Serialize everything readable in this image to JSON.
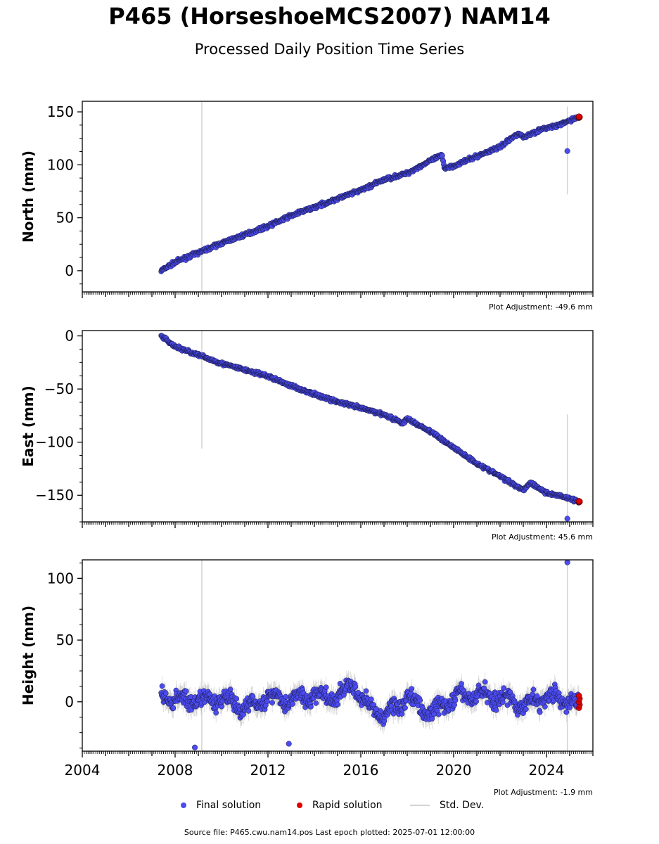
{
  "header": {
    "title": "P465 (HorseshoeMCS2007) NAM14",
    "subtitle": "Processed Daily Position Time Series"
  },
  "footer": {
    "source_text": "Source file: P465.cwu.nam14.pos  Last epoch plotted: 2025-07-01 12:00:00"
  },
  "legend": {
    "items": [
      {
        "label": "Final solution",
        "color": "#4b4bf0"
      },
      {
        "label": "Rapid solution",
        "color": "#e00000"
      },
      {
        "label": "Std. Dev.",
        "color": "#d3d3d3"
      }
    ]
  },
  "colors": {
    "final": "#4b4bf0",
    "rapid": "#e00000",
    "stddev": "#d3d3d3",
    "edge": "#000000"
  },
  "chart_data": [
    {
      "type": "scatter",
      "ylabel": "North (mm)",
      "adjustment": "Plot Adjustment: -49.6 mm",
      "xlim": [
        2004,
        2026
      ],
      "ylim": [
        -20,
        160
      ],
      "yticks": [
        "0",
        "50",
        "100",
        "150"
      ],
      "ytick_values": [
        0,
        50,
        100,
        150
      ],
      "xticks": [
        "2004",
        "2008",
        "2012",
        "2016",
        "2020",
        "2024"
      ],
      "xtick_values": [
        2004,
        2008,
        2012,
        2016,
        2020,
        2024
      ],
      "show_xticklabels": false,
      "series": [
        {
          "x": [
            2007.4,
            2008.0,
            2009.0,
            2010.0,
            2011.0,
            2012.0,
            2013.0,
            2014.0,
            2015.0,
            2016.0,
            2017.0,
            2018.0,
            2019.0,
            2019.5,
            2019.6,
            2020.0,
            2021.0,
            2022.0,
            2022.8,
            2023.0,
            2023.5,
            2024.0,
            2024.5,
            2025.0,
            2025.4
          ],
          "y": [
            0,
            8,
            17,
            26,
            34,
            42,
            52,
            60,
            68,
            76,
            86,
            92,
            104,
            109,
            97,
            99,
            108,
            117,
            130,
            126,
            131,
            135,
            137,
            142,
            145
          ]
        }
      ],
      "outliers": [
        {
          "x": 2024.9,
          "y": 113
        }
      ],
      "rapid": [
        {
          "x": 2025.4,
          "y": 145
        }
      ],
      "stddev_bars": [
        {
          "x": 2009.15,
          "y0": -20,
          "y1": 160
        },
        {
          "x": 2024.9,
          "y0": 72,
          "y1": 155
        }
      ]
    },
    {
      "type": "scatter",
      "ylabel": "East (mm)",
      "adjustment": "Plot Adjustment: 45.6 mm",
      "xlim": [
        2004,
        2026
      ],
      "ylim": [
        -175,
        5
      ],
      "yticks": [
        "0",
        "−50",
        "−100",
        "−150"
      ],
      "ytick_values": [
        0,
        -50,
        -100,
        -150
      ],
      "xticks": [
        "2004",
        "2008",
        "2012",
        "2016",
        "2020",
        "2024"
      ],
      "xtick_values": [
        2004,
        2008,
        2012,
        2016,
        2020,
        2024
      ],
      "show_xticklabels": false,
      "series": [
        {
          "x": [
            2007.4,
            2008.0,
            2009.0,
            2010.0,
            2011.0,
            2012.0,
            2013.0,
            2014.0,
            2015.0,
            2016.0,
            2017.0,
            2017.8,
            2018.0,
            2019.0,
            2020.0,
            2021.0,
            2022.0,
            2023.0,
            2023.3,
            2023.6,
            2024.0,
            2024.5,
            2025.0,
            2025.4
          ],
          "y": [
            0,
            -10,
            -18,
            -26,
            -32,
            -38,
            -47,
            -55,
            -62,
            -68,
            -74,
            -82,
            -78,
            -90,
            -105,
            -120,
            -132,
            -145,
            -138,
            -142,
            -148,
            -150,
            -153,
            -156
          ]
        }
      ],
      "outliers": [
        {
          "x": 2024.9,
          "y": -172
        }
      ],
      "rapid": [
        {
          "x": 2025.4,
          "y": -156
        }
      ],
      "stddev_bars": [
        {
          "x": 2009.15,
          "y0": -106,
          "y1": 5
        },
        {
          "x": 2024.9,
          "y0": -175,
          "y1": -74
        }
      ]
    },
    {
      "type": "scatter",
      "ylabel": "Height (mm)",
      "adjustment": "Plot Adjustment: -1.9 mm",
      "xlim": [
        2004,
        2026
      ],
      "ylim": [
        -40,
        115
      ],
      "yticks": [
        "0",
        "50",
        "100"
      ],
      "ytick_values": [
        0,
        50,
        100
      ],
      "xticks": [
        "2004",
        "2008",
        "2012",
        "2016",
        "2020",
        "2024"
      ],
      "xtick_values": [
        2004,
        2008,
        2012,
        2016,
        2020,
        2024
      ],
      "show_xticklabels": true,
      "series": [
        {
          "x": [
            2007.4,
            2008.0,
            2009.0,
            2010.0,
            2011.0,
            2012.0,
            2013.0,
            2014.0,
            2015.0,
            2015.7,
            2016.0,
            2017.0,
            2018.0,
            2019.0,
            2020.0,
            2021.0,
            2022.0,
            2023.0,
            2024.0,
            2025.0,
            2025.4
          ],
          "y": [
            5,
            2,
            0,
            3,
            -5,
            4,
            2,
            5,
            3,
            15,
            2,
            -12,
            4,
            -10,
            3,
            6,
            4,
            -3,
            5,
            0,
            -2
          ]
        }
      ],
      "outliers": [
        {
          "x": 2024.9,
          "y": 113
        },
        {
          "x": 2008.85,
          "y": -37
        },
        {
          "x": 2012.9,
          "y": -34
        }
      ],
      "rapid": [
        {
          "x": 2025.4,
          "y": 0
        }
      ],
      "stddev_bars": [
        {
          "x": 2009.15,
          "y0": -40,
          "y1": 115
        },
        {
          "x": 2024.9,
          "y0": -40,
          "y1": 115
        }
      ]
    }
  ]
}
